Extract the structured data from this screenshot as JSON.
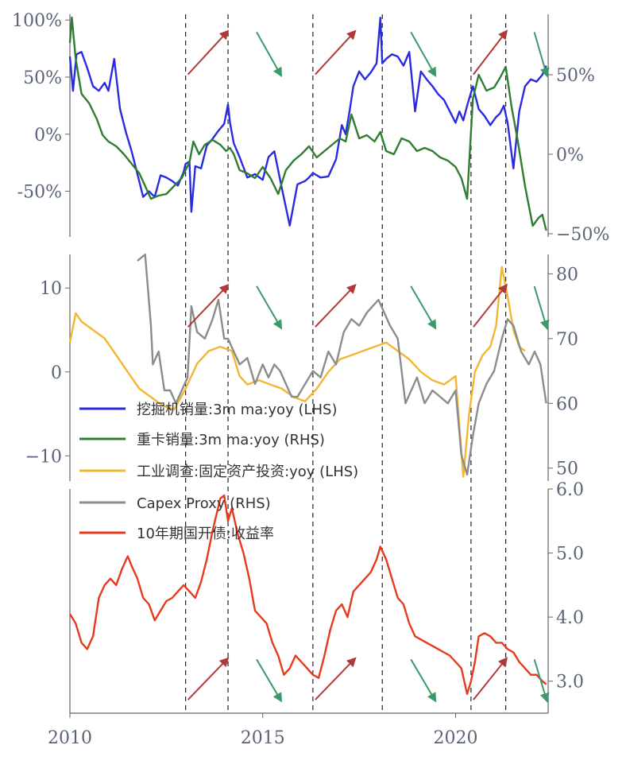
{
  "chart_data": [
    {
      "type": "line",
      "panel": "top",
      "x_range": [
        2010,
        2022.4
      ],
      "left_axis": {
        "ylim": [
          -90,
          105
        ],
        "ticks": [
          100,
          50,
          0,
          -50
        ],
        "tick_labels": [
          "100%",
          "50%",
          "0%",
          "-50%"
        ]
      },
      "right_axis": {
        "ylim": [
          -52,
          88
        ],
        "ticks": [
          50,
          0,
          -50
        ],
        "tick_labels": [
          "50%",
          "0%",
          "−50%"
        ]
      },
      "series": [
        {
          "name": "挖掘机销量:3m ma:yoy (LHS)",
          "axis": "left",
          "color": "#2a2ae0",
          "x": [
            2010.0,
            2010.08,
            2010.17,
            2010.3,
            2010.45,
            2010.6,
            2010.75,
            2010.9,
            2011.0,
            2011.15,
            2011.3,
            2011.45,
            2011.6,
            2011.75,
            2011.9,
            2012.05,
            2012.2,
            2012.35,
            2012.5,
            2012.65,
            2012.8,
            2012.95,
            2013.0,
            2013.1,
            2013.15,
            2013.25,
            2013.4,
            2013.55,
            2013.7,
            2013.85,
            2014.0,
            2014.1,
            2014.15,
            2014.25,
            2014.4,
            2014.6,
            2014.8,
            2015.0,
            2015.15,
            2015.3,
            2015.5,
            2015.7,
            2015.9,
            2016.1,
            2016.2,
            2016.3,
            2016.5,
            2016.7,
            2016.9,
            2017.05,
            2017.15,
            2017.25,
            2017.35,
            2017.5,
            2017.65,
            2017.8,
            2017.95,
            2018.05,
            2018.1,
            2018.2,
            2018.35,
            2018.5,
            2018.65,
            2018.8,
            2018.95,
            2019.1,
            2019.25,
            2019.4,
            2019.55,
            2019.7,
            2019.85,
            2020.0,
            2020.1,
            2020.2,
            2020.3,
            2020.45,
            2020.6,
            2020.75,
            2020.9,
            2021.05,
            2021.15,
            2021.25,
            2021.35,
            2021.5,
            2021.65,
            2021.8,
            2021.95,
            2022.1,
            2022.25,
            2022.35
          ],
          "y": [
            68,
            38,
            70,
            72,
            58,
            42,
            38,
            45,
            38,
            66,
            22,
            2,
            -15,
            -35,
            -55,
            -50,
            -55,
            -36,
            -38,
            -41,
            -45,
            -33,
            -26,
            -24,
            -68,
            -28,
            -30,
            -10,
            -4,
            3,
            9,
            26,
            10,
            -8,
            -20,
            -38,
            -35,
            -40,
            -20,
            -15,
            -48,
            -80,
            -44,
            -41,
            -38,
            -34,
            -38,
            -37,
            -22,
            8,
            0,
            20,
            42,
            55,
            48,
            54,
            62,
            102,
            62,
            66,
            70,
            68,
            60,
            72,
            20,
            55,
            48,
            42,
            35,
            30,
            20,
            10,
            20,
            12,
            25,
            42,
            22,
            16,
            8,
            15,
            18,
            25,
            10,
            -30,
            20,
            42,
            48,
            46,
            52,
            60
          ]
        },
        {
          "name": "重卡销量:3m ma:yoy (RHS)",
          "axis": "right",
          "color": "#2e7d32",
          "x": [
            2010.0,
            2010.05,
            2010.15,
            2010.3,
            2010.5,
            2010.7,
            2010.85,
            2011.0,
            2011.2,
            2011.4,
            2011.6,
            2011.8,
            2011.95,
            2012.1,
            2012.3,
            2012.5,
            2012.7,
            2012.9,
            2013.0,
            2013.1,
            2013.2,
            2013.35,
            2013.5,
            2013.7,
            2013.9,
            2014.05,
            2014.15,
            2014.25,
            2014.4,
            2014.6,
            2014.8,
            2015.0,
            2015.2,
            2015.4,
            2015.6,
            2015.8,
            2016.0,
            2016.2,
            2016.4,
            2016.6,
            2016.8,
            2017.0,
            2017.15,
            2017.3,
            2017.5,
            2017.7,
            2017.9,
            2018.05,
            2018.2,
            2018.4,
            2018.6,
            2018.8,
            2019.0,
            2019.2,
            2019.4,
            2019.6,
            2019.8,
            2020.0,
            2020.15,
            2020.3,
            2020.45,
            2020.6,
            2020.8,
            2021.0,
            2021.15,
            2021.3,
            2021.45,
            2021.6,
            2021.8,
            2022.0,
            2022.15,
            2022.25,
            2022.35
          ],
          "y": [
            70,
            86,
            60,
            38,
            32,
            22,
            12,
            8,
            5,
            0,
            -6,
            -12,
            -20,
            -28,
            -26,
            -25,
            -20,
            -15,
            -10,
            -5,
            8,
            0,
            6,
            9,
            6,
            2,
            4,
            0,
            -10,
            -12,
            -15,
            -8,
            -15,
            -25,
            -10,
            -4,
            0,
            5,
            -2,
            2,
            6,
            10,
            8,
            25,
            10,
            12,
            8,
            14,
            2,
            0,
            10,
            8,
            2,
            4,
            2,
            -2,
            -4,
            -8,
            -15,
            -28,
            35,
            50,
            40,
            42,
            48,
            55,
            30,
            10,
            -20,
            -45,
            -40,
            -38,
            -48
          ]
        }
      ]
    },
    {
      "type": "line",
      "panel": "middle",
      "x_range": [
        2010,
        2022.4
      ],
      "left_axis": {
        "ylim": [
          -13,
          14
        ],
        "ticks": [
          10,
          0,
          -10
        ],
        "tick_labels": [
          "10",
          "0",
          "−10"
        ]
      },
      "right_axis": {
        "ylim": [
          48,
          83
        ],
        "ticks": [
          80,
          70,
          60,
          50
        ],
        "tick_labels": [
          "80",
          "70",
          "60",
          "50"
        ]
      },
      "series": [
        {
          "name": "工业调查:固定资产投资:yoy (LHS)",
          "axis": "left",
          "color": "#f2b632",
          "x": [
            2010.0,
            2010.15,
            2010.3,
            2010.6,
            2010.9,
            2011.2,
            2011.5,
            2011.8,
            2012.1,
            2012.4,
            2012.7,
            2013.0,
            2013.3,
            2013.6,
            2013.9,
            2014.2,
            2014.4,
            2014.6,
            2014.9,
            2015.2,
            2015.5,
            2015.8,
            2016.1,
            2016.4,
            2016.7,
            2017.0,
            2017.3,
            2017.6,
            2017.9,
            2018.2,
            2018.5,
            2018.8,
            2019.1,
            2019.4,
            2019.7,
            2020.0,
            2020.2,
            2020.35,
            2020.5,
            2020.7,
            2020.9,
            2021.05,
            2021.2,
            2021.35,
            2021.5,
            2021.65,
            2021.8
          ],
          "y": [
            3.5,
            7.0,
            6.0,
            5.0,
            4.0,
            2.0,
            0.0,
            -2.0,
            -3.0,
            -4.0,
            -4.5,
            -2.0,
            1.0,
            2.5,
            3.0,
            2.5,
            -0.5,
            -1.5,
            -1.0,
            -1.5,
            -2.0,
            -3.0,
            -3.5,
            -2.0,
            0.0,
            1.5,
            2.0,
            2.5,
            3.0,
            3.5,
            2.5,
            1.5,
            0.0,
            -1.0,
            -1.5,
            -0.5,
            -12.5,
            -5.0,
            0.0,
            2.0,
            3.0,
            5.5,
            12.5,
            9.0,
            5.0,
            3.0,
            2.5
          ]
        },
        {
          "name": "Capex Proxy (RHS)",
          "axis": "right",
          "color": "#8c8c8c",
          "x": [
            2011.75,
            2011.95,
            2012.1,
            2012.15,
            2012.3,
            2012.45,
            2012.6,
            2012.75,
            2012.9,
            2013.05,
            2013.15,
            2013.3,
            2013.5,
            2013.7,
            2013.85,
            2014.0,
            2014.1,
            2014.25,
            2014.4,
            2014.6,
            2014.8,
            2015.0,
            2015.15,
            2015.3,
            2015.45,
            2015.6,
            2015.75,
            2015.9,
            2016.1,
            2016.3,
            2016.5,
            2016.7,
            2016.9,
            2017.1,
            2017.3,
            2017.5,
            2017.7,
            2017.85,
            2018.0,
            2018.15,
            2018.3,
            2018.5,
            2018.7,
            2018.85,
            2019.0,
            2019.2,
            2019.4,
            2019.6,
            2019.8,
            2020.0,
            2020.15,
            2020.3,
            2020.45,
            2020.6,
            2020.8,
            2021.0,
            2021.2,
            2021.35,
            2021.5,
            2021.7,
            2021.9,
            2022.05,
            2022.2,
            2022.35
          ],
          "y": [
            82,
            83,
            72,
            66,
            68,
            62,
            62,
            60,
            62,
            64,
            75,
            71,
            70,
            73,
            76,
            70,
            70,
            68,
            66,
            67,
            63,
            66,
            64,
            66,
            65,
            63,
            61,
            61,
            63,
            65,
            64,
            68,
            66,
            71,
            73,
            72,
            74,
            75,
            76,
            74,
            72,
            70,
            60,
            62,
            64,
            60,
            62,
            61,
            60,
            62,
            52,
            49,
            55,
            60,
            63,
            65,
            70,
            73,
            72,
            68,
            66,
            68,
            66,
            60
          ]
        }
      ]
    },
    {
      "type": "line",
      "panel": "bottom",
      "x_range": [
        2010,
        2022.4
      ],
      "right_axis": {
        "ylim": [
          2.5,
          6.0
        ],
        "ticks": [
          6.0,
          5.0,
          4.0,
          3.0
        ],
        "tick_labels": [
          "6.0",
          "5.0",
          "4.0",
          "3.0"
        ]
      },
      "series": [
        {
          "name": "10年期国开债:收益率",
          "axis": "right",
          "color": "#e63a1e",
          "x": [
            2010.0,
            2010.15,
            2010.3,
            2010.45,
            2010.6,
            2010.75,
            2010.9,
            2011.05,
            2011.2,
            2011.35,
            2011.5,
            2011.6,
            2011.75,
            2011.9,
            2012.05,
            2012.2,
            2012.35,
            2012.5,
            2012.65,
            2012.8,
            2012.95,
            2013.1,
            2013.25,
            2013.4,
            2013.55,
            2013.7,
            2013.8,
            2013.9,
            2014.0,
            2014.1,
            2014.2,
            2014.35,
            2014.5,
            2014.65,
            2014.8,
            2014.95,
            2015.1,
            2015.25,
            2015.4,
            2015.55,
            2015.7,
            2015.85,
            2016.0,
            2016.15,
            2016.3,
            2016.45,
            2016.6,
            2016.75,
            2016.9,
            2017.05,
            2017.2,
            2017.35,
            2017.5,
            2017.65,
            2017.8,
            2017.95,
            2018.05,
            2018.2,
            2018.35,
            2018.5,
            2018.65,
            2018.8,
            2018.95,
            2019.1,
            2019.25,
            2019.4,
            2019.55,
            2019.7,
            2019.85,
            2020.0,
            2020.15,
            2020.3,
            2020.4,
            2020.5,
            2020.6,
            2020.75,
            2020.9,
            2021.05,
            2021.2,
            2021.35,
            2021.5,
            2021.65,
            2021.8,
            2021.95,
            2022.1,
            2022.25,
            2022.35
          ],
          "y": [
            4.05,
            3.9,
            3.6,
            3.5,
            3.7,
            4.3,
            4.5,
            4.6,
            4.5,
            4.75,
            4.95,
            4.8,
            4.6,
            4.3,
            4.2,
            3.95,
            4.1,
            4.25,
            4.3,
            4.4,
            4.5,
            4.4,
            4.3,
            4.55,
            4.9,
            5.35,
            5.6,
            5.85,
            5.9,
            5.5,
            5.7,
            5.3,
            5.0,
            4.6,
            4.1,
            4.0,
            3.9,
            3.6,
            3.4,
            3.1,
            3.2,
            3.4,
            3.3,
            3.2,
            3.1,
            3.05,
            3.4,
            3.8,
            4.1,
            4.2,
            4.0,
            4.4,
            4.5,
            4.6,
            4.7,
            4.9,
            5.1,
            4.9,
            4.6,
            4.3,
            4.2,
            3.9,
            3.7,
            3.65,
            3.6,
            3.55,
            3.5,
            3.45,
            3.4,
            3.3,
            3.2,
            2.8,
            3.0,
            3.3,
            3.7,
            3.75,
            3.7,
            3.6,
            3.6,
            3.5,
            3.45,
            3.3,
            3.2,
            3.1,
            3.1,
            3.0,
            2.95
          ]
        }
      ]
    }
  ],
  "x_axis": {
    "ticks": [
      2010,
      2015,
      2020
    ],
    "tick_labels": [
      "2010",
      "2015",
      "2020"
    ]
  },
  "vertical_markers": [
    2013.0,
    2014.1,
    2016.3,
    2018.1,
    2020.4,
    2021.3
  ],
  "trend_arrows": {
    "up_color": "#b03a3a",
    "down_color": "#3a9a6a",
    "up_segments": [
      [
        2013.0,
        2014.1
      ],
      [
        2016.3,
        2018.1
      ],
      [
        2020.4,
        2021.3
      ]
    ],
    "down_segments": [
      [
        2014.1,
        2016.3
      ],
      [
        2018.1,
        2020.4
      ],
      [
        2021.3,
        2022.4
      ]
    ]
  },
  "legend": {
    "placement": "center-left",
    "entries": [
      {
        "label": "挖掘机销量:3m ma:yoy (LHS)",
        "color": "#2a2ae0"
      },
      {
        "label": "重卡销量:3m ma:yoy (RHS)",
        "color": "#2e7d32"
      },
      {
        "label": "工业调查:固定资产投资:yoy (LHS)",
        "color": "#f2b632"
      },
      {
        "label": "Capex Proxy (RHS)",
        "color": "#8c8c8c"
      },
      {
        "label": "10年期国开债:收益率",
        "color": "#e63a1e"
      }
    ]
  }
}
